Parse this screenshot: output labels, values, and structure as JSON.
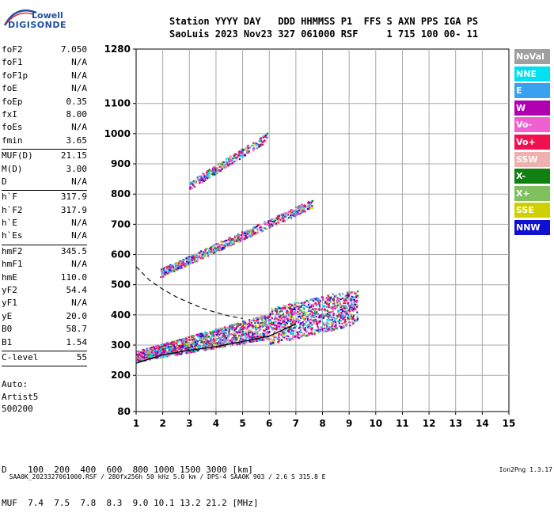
{
  "logo": {
    "line1": "Lowell",
    "line2": "DIGISONDE"
  },
  "header": {
    "line1": "Station YYYY DAY   DDD HHMMSS P1  FFS S AXN PPS IGA PS",
    "line2": "SaoLuis 2023 Nov23 327 061000 RSF     1 715 100 00- 11"
  },
  "params": [
    {
      "name": "foF2",
      "value": "7.050"
    },
    {
      "name": "foF1",
      "value": "N/A"
    },
    {
      "name": "foF1p",
      "value": "N/A"
    },
    {
      "name": "foE",
      "value": "N/A"
    },
    {
      "name": "foEp",
      "value": "0.35"
    },
    {
      "name": "fxI",
      "value": "8.00"
    },
    {
      "name": "foEs",
      "value": "N/A"
    },
    {
      "name": "fmin",
      "value": "3.65",
      "sep": true
    },
    {
      "name": "MUF(D)",
      "value": "21.15"
    },
    {
      "name": "M(D)",
      "value": "3.00"
    },
    {
      "name": "D",
      "value": "N/A",
      "sep": true
    },
    {
      "name": "h`F",
      "value": "317.9"
    },
    {
      "name": "h`F2",
      "value": "317.9"
    },
    {
      "name": "h`E",
      "value": "N/A"
    },
    {
      "name": "h`Es",
      "value": "N/A",
      "sep": true
    },
    {
      "name": "hmF2",
      "value": "345.5"
    },
    {
      "name": "hmF1",
      "value": "N/A"
    },
    {
      "name": "hmE",
      "value": "110.0"
    },
    {
      "name": "yF2",
      "value": "54.4"
    },
    {
      "name": "yF1",
      "value": "N/A"
    },
    {
      "name": "yE",
      "value": "20.0"
    },
    {
      "name": "B0",
      "value": "58.7"
    },
    {
      "name": "B1",
      "value": "1.54",
      "sep": true
    },
    {
      "name": "C-level",
      "value": "55",
      "sep": true
    }
  ],
  "auto": [
    "Auto:",
    "Artist5",
    "500200"
  ],
  "legend": [
    {
      "label": "NoVal",
      "color": "#a0a0a0"
    },
    {
      "label": "NNE",
      "color": "#00e0f0"
    },
    {
      "label": "E",
      "color": "#3aa0f0"
    },
    {
      "label": "W",
      "color": "#b000b0"
    },
    {
      "label": "Vo-",
      "color": "#f060d0"
    },
    {
      "label": "Vo+",
      "color": "#f01050"
    },
    {
      "label": "SSW",
      "color": "#f0b0b0"
    },
    {
      "label": "X-",
      "color": "#108010"
    },
    {
      "label": "X+",
      "color": "#80c060"
    },
    {
      "label": "SSE",
      "color": "#d0d000"
    },
    {
      "label": "NNW",
      "color": "#1010d0"
    }
  ],
  "muf_table": {
    "d_label": "D",
    "d_values": [
      "100",
      "200",
      "400",
      "600",
      "800",
      "1000",
      "1500",
      "3000"
    ],
    "d_unit": "[km]",
    "muf_label": "MUF",
    "muf_values": [
      "7.4",
      "7.5",
      "7.8",
      "8.3",
      "9.0",
      "10.1",
      "13.2",
      "21.2"
    ],
    "muf_unit": "[MHz]"
  },
  "footer": {
    "left": "SAA0K_2023327061000.RSF / 280fx256h 50 kHz 5.0 km / DPS-4 SAA0K 903 / 2.6 S 315.8 E",
    "right": "Ion2Png 1.3.17"
  },
  "chart_data": {
    "type": "scatter",
    "x_axis": {
      "range": [
        1,
        15
      ],
      "ticks": [
        1,
        2,
        3,
        4,
        5,
        6,
        7,
        8,
        9,
        10,
        11,
        12,
        13,
        14,
        15
      ],
      "unit": "MHz"
    },
    "y_axis": {
      "range": [
        80,
        1280
      ],
      "ticks": [
        80,
        200,
        300,
        400,
        500,
        600,
        700,
        800,
        900,
        1000,
        1100,
        1280
      ],
      "unit": "km"
    },
    "grid": true,
    "traces": [
      {
        "name": "F2 first hop",
        "x_start": 1.0,
        "x_end": 9.3,
        "h_start": 265,
        "h_end": 430
      },
      {
        "name": "F2 second hop",
        "x_start": 1.9,
        "x_end": 7.6,
        "h_start": 540,
        "h_end": 770
      },
      {
        "name": "F2 third hop",
        "x_start": 3.0,
        "x_end": 5.9,
        "h_start": 830,
        "h_end": 990
      }
    ],
    "profile_curve": {
      "x": [
        1.0,
        2,
        3,
        4,
        5,
        6,
        7
      ],
      "h": [
        240,
        268,
        283,
        295,
        312,
        330,
        370
      ]
    },
    "muf_curve_dashed": {
      "x": [
        1.0,
        1.5,
        2,
        2.5,
        3,
        3.5,
        4,
        4.5,
        5
      ],
      "h": [
        560,
        515,
        485,
        460,
        440,
        422,
        408,
        396,
        388
      ]
    }
  }
}
